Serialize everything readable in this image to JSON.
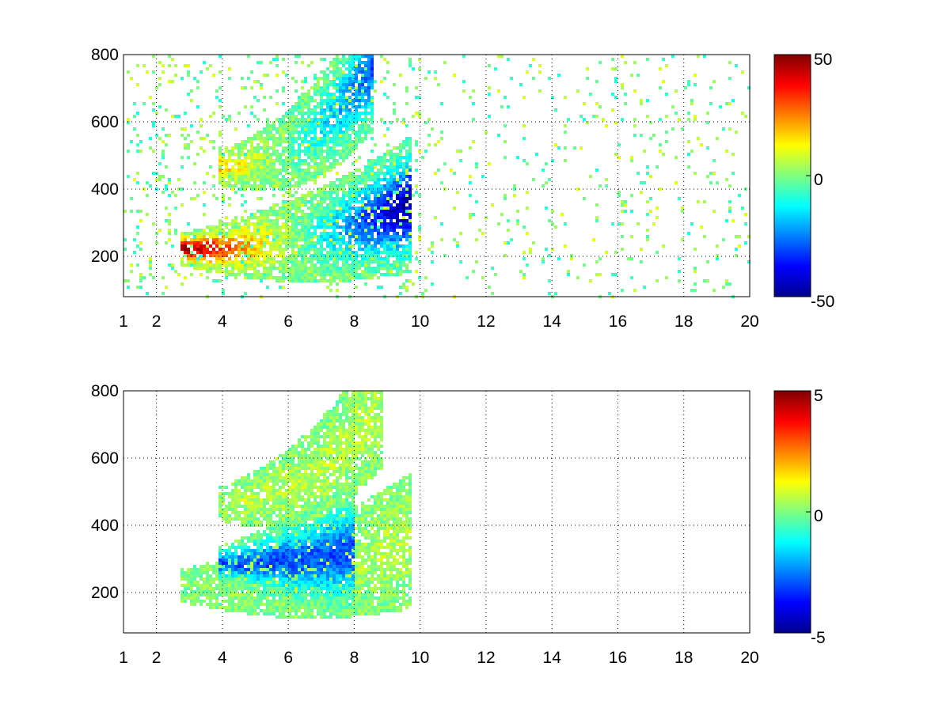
{
  "chart_data": [
    {
      "type": "heatmap",
      "title": "",
      "xlabel": "",
      "ylabel": "",
      "xlim": [
        1,
        20
      ],
      "ylim": [
        80,
        800
      ],
      "x_ticks": [
        1,
        2,
        4,
        6,
        8,
        10,
        12,
        14,
        16,
        18,
        20
      ],
      "y_ticks": [
        200,
        400,
        600,
        800
      ],
      "grid": true,
      "colorbar": {
        "colormap": "jet",
        "range": [
          -50,
          50
        ],
        "ticks": [
          50,
          0,
          -50
        ]
      },
      "features": [
        {
          "name": "lower band",
          "x_range": [
            2.7,
            9.7
          ],
          "y_start": 225,
          "y_end": 360,
          "peak_value": 50,
          "end_value": -50
        },
        {
          "name": "upper band",
          "x_range": [
            3.8,
            8.5
          ],
          "y_start": 470,
          "y_end": 770,
          "peak_value": 20,
          "end_value": -30
        },
        {
          "name": "sparse noise",
          "x_range": [
            1,
            20
          ],
          "values": [
            -10,
            10
          ]
        }
      ]
    },
    {
      "type": "heatmap",
      "title": "",
      "xlabel": "",
      "ylabel": "",
      "xlim": [
        1,
        20
      ],
      "ylim": [
        80,
        800
      ],
      "x_ticks": [
        1,
        2,
        4,
        6,
        8,
        10,
        12,
        14,
        16,
        18,
        20
      ],
      "y_ticks": [
        200,
        400,
        600,
        800
      ],
      "grid": true,
      "colorbar": {
        "colormap": "jet",
        "range": [
          -5,
          5
        ],
        "ticks": [
          5,
          0,
          -5
        ]
      },
      "features": [
        {
          "name": "lower band",
          "x_range": [
            2.7,
            9.7
          ],
          "y_start": 225,
          "y_end": 360,
          "peak_value": 0,
          "end_value": 0.5
        },
        {
          "name": "negative streak",
          "x_range": [
            3.8,
            8.0
          ],
          "y_start": 290,
          "y_end": 330,
          "peak_value": -3
        },
        {
          "name": "upper band",
          "x_range": [
            3.8,
            8.8
          ],
          "y_start": 470,
          "y_end": 770,
          "peak_value": 0.5
        }
      ]
    }
  ]
}
